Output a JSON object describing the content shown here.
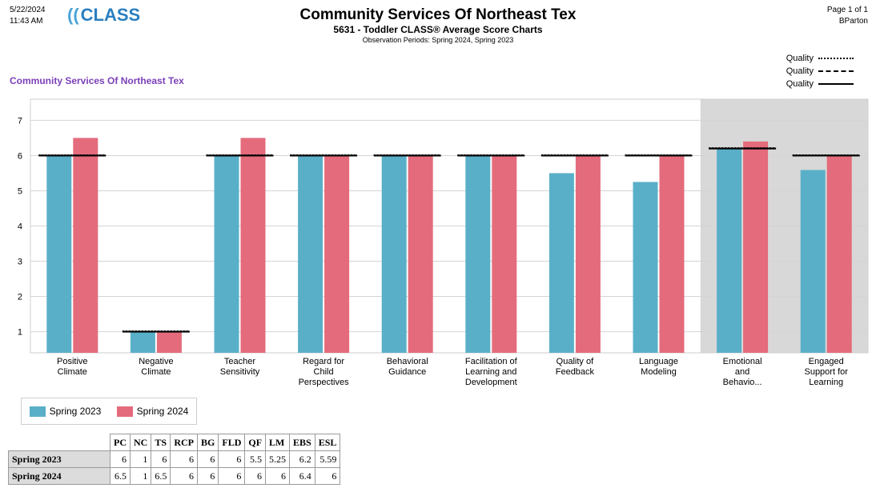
{
  "header": {
    "date": "5/22/2024",
    "time": "11:43 AM",
    "logo_text": "CLASS",
    "logo_paren": "((",
    "title": "Community Services Of Northeast Tex",
    "subtitle": "5631 - Toddler CLASS® Average Score Charts",
    "periods": "Observation Periods: Spring 2024, Spring 2023",
    "page": "Page 1 of 1",
    "user": "BParton"
  },
  "org_label": "Community Services Of Northeast Tex",
  "quality_legend": [
    "Quality",
    "Quality",
    "Quality"
  ],
  "colors": {
    "spring2023": "#5aafc8",
    "spring2024": "#e46b7b",
    "shade": "#d8d8d8",
    "grid": "#d4d4d4",
    "reference": "#000000"
  },
  "chart_data": {
    "type": "bar",
    "categories": [
      [
        "Positive",
        "Climate"
      ],
      [
        "Negative",
        "Climate"
      ],
      [
        "Teacher",
        "Sensitivity"
      ],
      [
        "Regard for",
        "Child",
        "Perspectives"
      ],
      [
        "Behavioral",
        "Guidance"
      ],
      [
        "Facilitation of",
        "Learning and",
        "Development"
      ],
      [
        "Quality of",
        "Feedback"
      ],
      [
        "Language",
        "Modeling"
      ],
      [
        "Emotional",
        "and",
        "Behavio..."
      ],
      [
        "Engaged",
        "Support for",
        "Learning"
      ]
    ],
    "series": [
      {
        "name": "Spring 2023",
        "values": [
          6,
          1,
          6,
          6,
          6,
          6,
          5.5,
          5.25,
          6.2,
          5.59
        ]
      },
      {
        "name": "Spring 2024",
        "values": [
          6.5,
          1,
          6.5,
          6,
          6,
          6,
          6,
          6,
          6.4,
          6
        ]
      }
    ],
    "reference_lines": [
      6,
      1,
      6,
      6,
      6,
      6,
      6,
      6,
      6.2,
      6
    ],
    "shaded_categories": [
      8,
      9
    ],
    "yticks": [
      1,
      2,
      3,
      4,
      5,
      6,
      7
    ],
    "ylim": [
      0.4,
      7.6
    ],
    "grid": true,
    "legend": "bottom-left"
  },
  "table": {
    "columns": [
      "PC",
      "NC",
      "TS",
      "RCP",
      "BG",
      "FLD",
      "QF",
      "LM",
      "EBS",
      "ESL"
    ],
    "rows": [
      {
        "label": "Spring 2023",
        "values": [
          "6",
          "1",
          "6",
          "6",
          "6",
          "6",
          "5.5",
          "5.25",
          "6.2",
          "5.59"
        ]
      },
      {
        "label": "Spring 2024",
        "values": [
          "6.5",
          "1",
          "6.5",
          "6",
          "6",
          "6",
          "6",
          "6",
          "6.4",
          "6"
        ]
      }
    ]
  }
}
